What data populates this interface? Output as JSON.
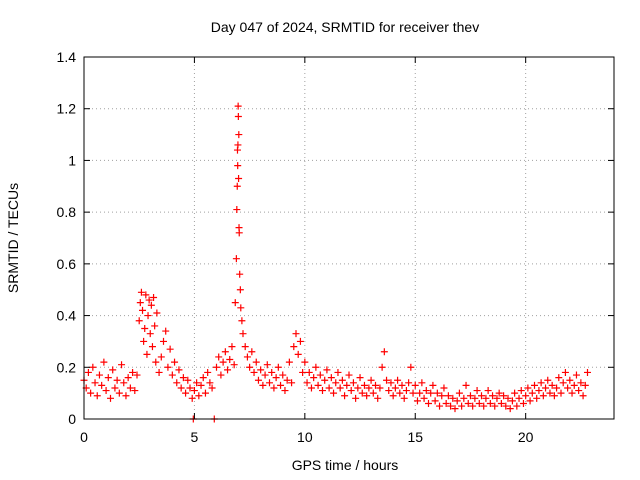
{
  "chart_data": {
    "type": "scatter",
    "title": "Day 047 of 2024, SRMTID for receiver thev",
    "xlabel": "GPS time / hours",
    "ylabel": "SRMTID / TECUs",
    "xlim": [
      0,
      24
    ],
    "ylim": [
      0,
      1.4
    ],
    "xticks": [
      0,
      5,
      10,
      15,
      20
    ],
    "xtick_labels": [
      "0",
      "5",
      "10",
      "15",
      "20"
    ],
    "yticks": [
      0,
      0.2,
      0.4,
      0.6,
      0.8,
      1.0,
      1.2,
      1.4
    ],
    "ytick_labels": [
      "0",
      "0.2",
      "0.4",
      "0.6",
      "0.8",
      "1",
      "1.2",
      "1.4"
    ],
    "grid": true,
    "marker": "plus",
    "color": "#ff0000",
    "series": [
      {
        "name": "SRMTID",
        "points": [
          [
            0.0,
            0.15
          ],
          [
            0.1,
            0.12
          ],
          [
            0.2,
            0.18
          ],
          [
            0.3,
            0.1
          ],
          [
            0.4,
            0.2
          ],
          [
            0.5,
            0.14
          ],
          [
            0.6,
            0.09
          ],
          [
            0.7,
            0.17
          ],
          [
            0.8,
            0.13
          ],
          [
            0.9,
            0.22
          ],
          [
            1.0,
            0.11
          ],
          [
            1.1,
            0.16
          ],
          [
            1.2,
            0.08
          ],
          [
            1.3,
            0.19
          ],
          [
            1.4,
            0.12
          ],
          [
            1.5,
            0.15
          ],
          [
            1.6,
            0.1
          ],
          [
            1.7,
            0.21
          ],
          [
            1.8,
            0.14
          ],
          [
            1.9,
            0.09
          ],
          [
            2.0,
            0.16
          ],
          [
            2.1,
            0.12
          ],
          [
            2.2,
            0.18
          ],
          [
            2.3,
            0.11
          ],
          [
            2.4,
            0.17
          ],
          [
            2.5,
            0.38
          ],
          [
            2.55,
            0.45
          ],
          [
            2.6,
            0.49
          ],
          [
            2.65,
            0.42
          ],
          [
            2.7,
            0.3
          ],
          [
            2.75,
            0.35
          ],
          [
            2.8,
            0.48
          ],
          [
            2.85,
            0.25
          ],
          [
            2.9,
            0.4
          ],
          [
            2.95,
            0.46
          ],
          [
            3.0,
            0.33
          ],
          [
            3.05,
            0.44
          ],
          [
            3.1,
            0.28
          ],
          [
            3.15,
            0.47
          ],
          [
            3.2,
            0.36
          ],
          [
            3.25,
            0.22
          ],
          [
            3.3,
            0.41
          ],
          [
            3.4,
            0.18
          ],
          [
            3.5,
            0.24
          ],
          [
            3.6,
            0.3
          ],
          [
            3.7,
            0.34
          ],
          [
            3.8,
            0.2
          ],
          [
            3.9,
            0.27
          ],
          [
            4.0,
            0.17
          ],
          [
            4.1,
            0.22
          ],
          [
            4.2,
            0.14
          ],
          [
            4.3,
            0.19
          ],
          [
            4.4,
            0.12
          ],
          [
            4.5,
            0.16
          ],
          [
            4.6,
            0.1
          ],
          [
            4.7,
            0.15
          ],
          [
            4.8,
            0.12
          ],
          [
            4.9,
            0.08
          ],
          [
            4.95,
            0.0
          ],
          [
            5.0,
            0.11
          ],
          [
            5.1,
            0.14
          ],
          [
            5.2,
            0.09
          ],
          [
            5.3,
            0.13
          ],
          [
            5.4,
            0.16
          ],
          [
            5.5,
            0.1
          ],
          [
            5.6,
            0.18
          ],
          [
            5.7,
            0.14
          ],
          [
            5.8,
            0.12
          ],
          [
            5.9,
            0.0
          ],
          [
            6.0,
            0.2
          ],
          [
            6.1,
            0.24
          ],
          [
            6.2,
            0.17
          ],
          [
            6.3,
            0.22
          ],
          [
            6.4,
            0.26
          ],
          [
            6.5,
            0.19
          ],
          [
            6.6,
            0.23
          ],
          [
            6.7,
            0.28
          ],
          [
            6.8,
            0.21
          ],
          [
            6.85,
            0.45
          ],
          [
            6.9,
            0.62
          ],
          [
            6.92,
            0.81
          ],
          [
            6.94,
            0.9
          ],
          [
            6.95,
            1.04
          ],
          [
            6.96,
            0.98
          ],
          [
            6.97,
            1.06
          ],
          [
            6.98,
            1.21
          ],
          [
            6.99,
            1.17
          ],
          [
            7.0,
            0.93
          ],
          [
            7.01,
            1.1
          ],
          [
            7.02,
            0.74
          ],
          [
            7.03,
            0.72
          ],
          [
            7.05,
            0.56
          ],
          [
            7.08,
            0.5
          ],
          [
            7.1,
            0.43
          ],
          [
            7.15,
            0.38
          ],
          [
            7.2,
            0.33
          ],
          [
            7.3,
            0.28
          ],
          [
            7.4,
            0.24
          ],
          [
            7.5,
            0.2
          ],
          [
            7.6,
            0.26
          ],
          [
            7.7,
            0.18
          ],
          [
            7.8,
            0.22
          ],
          [
            7.9,
            0.15
          ],
          [
            8.0,
            0.19
          ],
          [
            8.1,
            0.13
          ],
          [
            8.2,
            0.17
          ],
          [
            8.3,
            0.21
          ],
          [
            8.4,
            0.14
          ],
          [
            8.5,
            0.18
          ],
          [
            8.6,
            0.12
          ],
          [
            8.7,
            0.16
          ],
          [
            8.8,
            0.2
          ],
          [
            8.9,
            0.13
          ],
          [
            9.0,
            0.17
          ],
          [
            9.1,
            0.11
          ],
          [
            9.2,
            0.15
          ],
          [
            9.3,
            0.22
          ],
          [
            9.4,
            0.14
          ],
          [
            9.5,
            0.28
          ],
          [
            9.6,
            0.33
          ],
          [
            9.7,
            0.25
          ],
          [
            9.8,
            0.3
          ],
          [
            9.9,
            0.18
          ],
          [
            10.0,
            0.22
          ],
          [
            10.1,
            0.14
          ],
          [
            10.2,
            0.18
          ],
          [
            10.3,
            0.12
          ],
          [
            10.4,
            0.16
          ],
          [
            10.5,
            0.2
          ],
          [
            10.6,
            0.13
          ],
          [
            10.7,
            0.17
          ],
          [
            10.8,
            0.11
          ],
          [
            10.9,
            0.15
          ],
          [
            11.0,
            0.19
          ],
          [
            11.1,
            0.12
          ],
          [
            11.2,
            0.16
          ],
          [
            11.3,
            0.1
          ],
          [
            11.4,
            0.14
          ],
          [
            11.5,
            0.18
          ],
          [
            11.6,
            0.12
          ],
          [
            11.7,
            0.15
          ],
          [
            11.8,
            0.09
          ],
          [
            11.9,
            0.13
          ],
          [
            12.0,
            0.17
          ],
          [
            12.1,
            0.11
          ],
          [
            12.2,
            0.14
          ],
          [
            12.3,
            0.08
          ],
          [
            12.4,
            0.12
          ],
          [
            12.5,
            0.16
          ],
          [
            12.6,
            0.1
          ],
          [
            12.7,
            0.13
          ],
          [
            12.8,
            0.09
          ],
          [
            12.9,
            0.12
          ],
          [
            13.0,
            0.15
          ],
          [
            13.1,
            0.1
          ],
          [
            13.2,
            0.13
          ],
          [
            13.3,
            0.08
          ],
          [
            13.4,
            0.12
          ],
          [
            13.5,
            0.2
          ],
          [
            13.6,
            0.26
          ],
          [
            13.7,
            0.15
          ],
          [
            13.8,
            0.11
          ],
          [
            13.9,
            0.14
          ],
          [
            14.0,
            0.09
          ],
          [
            14.1,
            0.12
          ],
          [
            14.2,
            0.15
          ],
          [
            14.3,
            0.1
          ],
          [
            14.4,
            0.13
          ],
          [
            14.5,
            0.08
          ],
          [
            14.6,
            0.11
          ],
          [
            14.7,
            0.14
          ],
          [
            14.8,
            0.2
          ],
          [
            14.9,
            0.1
          ],
          [
            15.0,
            0.13
          ],
          [
            15.1,
            0.07
          ],
          [
            15.2,
            0.1
          ],
          [
            15.3,
            0.14
          ],
          [
            15.4,
            0.08
          ],
          [
            15.5,
            0.11
          ],
          [
            15.6,
            0.06
          ],
          [
            15.7,
            0.1
          ],
          [
            15.8,
            0.13
          ],
          [
            15.9,
            0.07
          ],
          [
            16.0,
            0.1
          ],
          [
            16.1,
            0.05
          ],
          [
            16.2,
            0.09
          ],
          [
            16.3,
            0.12
          ],
          [
            16.4,
            0.06
          ],
          [
            16.5,
            0.09
          ],
          [
            16.6,
            0.05
          ],
          [
            16.7,
            0.08
          ],
          [
            16.8,
            0.04
          ],
          [
            16.9,
            0.07
          ],
          [
            17.0,
            0.1
          ],
          [
            17.1,
            0.05
          ],
          [
            17.2,
            0.08
          ],
          [
            17.3,
            0.13
          ],
          [
            17.4,
            0.06
          ],
          [
            17.5,
            0.09
          ],
          [
            17.6,
            0.05
          ],
          [
            17.7,
            0.08
          ],
          [
            17.8,
            0.11
          ],
          [
            17.9,
            0.06
          ],
          [
            18.0,
            0.09
          ],
          [
            18.1,
            0.05
          ],
          [
            18.2,
            0.08
          ],
          [
            18.3,
            0.11
          ],
          [
            18.4,
            0.06
          ],
          [
            18.5,
            0.09
          ],
          [
            18.6,
            0.05
          ],
          [
            18.7,
            0.08
          ],
          [
            18.8,
            0.1
          ],
          [
            18.9,
            0.06
          ],
          [
            19.0,
            0.09
          ],
          [
            19.1,
            0.05
          ],
          [
            19.2,
            0.08
          ],
          [
            19.3,
            0.04
          ],
          [
            19.4,
            0.07
          ],
          [
            19.5,
            0.1
          ],
          [
            19.6,
            0.05
          ],
          [
            19.7,
            0.08
          ],
          [
            19.8,
            0.11
          ],
          [
            19.9,
            0.06
          ],
          [
            20.0,
            0.09
          ],
          [
            20.1,
            0.12
          ],
          [
            20.2,
            0.07
          ],
          [
            20.3,
            0.1
          ],
          [
            20.4,
            0.13
          ],
          [
            20.5,
            0.08
          ],
          [
            20.6,
            0.11
          ],
          [
            20.7,
            0.14
          ],
          [
            20.8,
            0.09
          ],
          [
            20.9,
            0.12
          ],
          [
            21.0,
            0.15
          ],
          [
            21.1,
            0.1
          ],
          [
            21.2,
            0.13
          ],
          [
            21.3,
            0.09
          ],
          [
            21.4,
            0.12
          ],
          [
            21.5,
            0.16
          ],
          [
            21.6,
            0.1
          ],
          [
            21.7,
            0.14
          ],
          [
            21.8,
            0.18
          ],
          [
            21.9,
            0.12
          ],
          [
            22.0,
            0.15
          ],
          [
            22.1,
            0.1
          ],
          [
            22.2,
            0.13
          ],
          [
            22.3,
            0.17
          ],
          [
            22.4,
            0.11
          ],
          [
            22.5,
            0.14
          ],
          [
            22.6,
            0.09
          ],
          [
            22.7,
            0.13
          ],
          [
            22.8,
            0.18
          ]
        ]
      }
    ]
  }
}
